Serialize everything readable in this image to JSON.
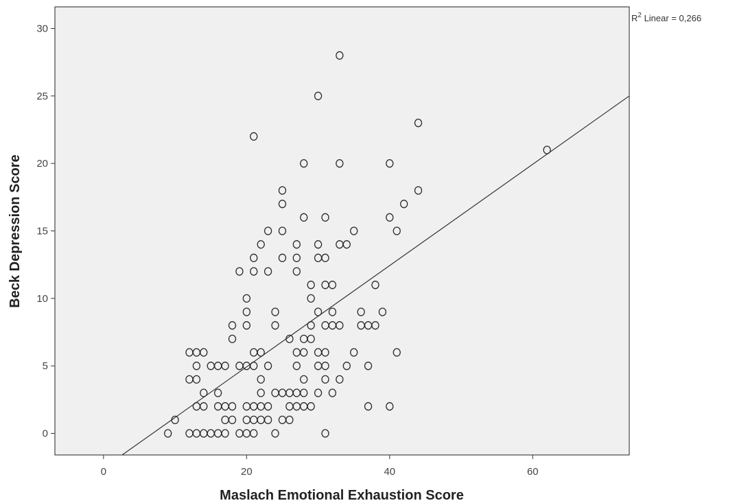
{
  "chart_data": {
    "type": "scatter",
    "xlabel": "Maslach Emotional Exhaustion Score",
    "ylabel": "Beck Depression Score",
    "xlim": [
      -6.8,
      73.5
    ],
    "ylim": [
      -1.6,
      31.6
    ],
    "x_ticks": [
      "0",
      "20",
      "40",
      "60"
    ],
    "y_ticks": [
      "0",
      "5",
      "10",
      "15",
      "20",
      "25",
      "30"
    ],
    "grid": false,
    "fit_line": {
      "type": "linear",
      "label_prefix": "R",
      "label_sup": "2",
      "label_rest": " Linear = 0,266",
      "points": [
        [
          2.6,
          -1.6
        ],
        [
          73.5,
          25.0
        ]
      ]
    },
    "colors": {
      "plot_background": "#f0f0f0",
      "marker": "#2a2a2a",
      "fit_line": "#333333"
    },
    "points": [
      [
        33,
        28
      ],
      [
        30,
        25
      ],
      [
        44,
        23
      ],
      [
        21,
        22
      ],
      [
        62,
        21
      ],
      [
        28,
        20
      ],
      [
        33,
        20
      ],
      [
        40,
        20
      ],
      [
        25,
        18
      ],
      [
        44,
        18
      ],
      [
        25,
        17
      ],
      [
        42,
        17
      ],
      [
        28,
        16
      ],
      [
        31,
        16
      ],
      [
        40,
        16
      ],
      [
        23,
        15
      ],
      [
        25,
        15
      ],
      [
        35,
        15
      ],
      [
        41,
        15
      ],
      [
        22,
        14
      ],
      [
        27,
        14
      ],
      [
        30,
        14
      ],
      [
        33,
        14
      ],
      [
        34,
        14
      ],
      [
        21,
        13
      ],
      [
        25,
        13
      ],
      [
        27,
        13
      ],
      [
        30,
        13
      ],
      [
        31,
        13
      ],
      [
        19,
        12
      ],
      [
        21,
        12
      ],
      [
        23,
        12
      ],
      [
        27,
        12
      ],
      [
        29,
        11
      ],
      [
        31,
        11
      ],
      [
        32,
        11
      ],
      [
        38,
        11
      ],
      [
        20,
        10
      ],
      [
        29,
        10
      ],
      [
        20,
        9
      ],
      [
        24,
        9
      ],
      [
        30,
        9
      ],
      [
        32,
        9
      ],
      [
        36,
        9
      ],
      [
        39,
        9
      ],
      [
        18,
        8
      ],
      [
        20,
        8
      ],
      [
        24,
        8
      ],
      [
        29,
        8
      ],
      [
        31,
        8
      ],
      [
        32,
        8
      ],
      [
        33,
        8
      ],
      [
        36,
        8
      ],
      [
        37,
        8
      ],
      [
        38,
        8
      ],
      [
        18,
        7
      ],
      [
        26,
        7
      ],
      [
        28,
        7
      ],
      [
        29,
        7
      ],
      [
        12,
        6
      ],
      [
        13,
        6
      ],
      [
        14,
        6
      ],
      [
        21,
        6
      ],
      [
        22,
        6
      ],
      [
        27,
        6
      ],
      [
        28,
        6
      ],
      [
        30,
        6
      ],
      [
        31,
        6
      ],
      [
        35,
        6
      ],
      [
        41,
        6
      ],
      [
        13,
        5
      ],
      [
        15,
        5
      ],
      [
        16,
        5
      ],
      [
        17,
        5
      ],
      [
        19,
        5
      ],
      [
        20,
        5
      ],
      [
        21,
        5
      ],
      [
        23,
        5
      ],
      [
        27,
        5
      ],
      [
        30,
        5
      ],
      [
        31,
        5
      ],
      [
        34,
        5
      ],
      [
        37,
        5
      ],
      [
        12,
        4
      ],
      [
        13,
        4
      ],
      [
        22,
        4
      ],
      [
        28,
        4
      ],
      [
        31,
        4
      ],
      [
        33,
        4
      ],
      [
        14,
        3
      ],
      [
        16,
        3
      ],
      [
        22,
        3
      ],
      [
        24,
        3
      ],
      [
        25,
        3
      ],
      [
        26,
        3
      ],
      [
        27,
        3
      ],
      [
        28,
        3
      ],
      [
        30,
        3
      ],
      [
        32,
        3
      ],
      [
        13,
        2
      ],
      [
        14,
        2
      ],
      [
        16,
        2
      ],
      [
        17,
        2
      ],
      [
        18,
        2
      ],
      [
        20,
        2
      ],
      [
        21,
        2
      ],
      [
        22,
        2
      ],
      [
        23,
        2
      ],
      [
        26,
        2
      ],
      [
        27,
        2
      ],
      [
        28,
        2
      ],
      [
        29,
        2
      ],
      [
        37,
        2
      ],
      [
        40,
        2
      ],
      [
        10,
        1
      ],
      [
        17,
        1
      ],
      [
        18,
        1
      ],
      [
        20,
        1
      ],
      [
        21,
        1
      ],
      [
        22,
        1
      ],
      [
        23,
        1
      ],
      [
        25,
        1
      ],
      [
        26,
        1
      ],
      [
        9,
        0
      ],
      [
        12,
        0
      ],
      [
        13,
        0
      ],
      [
        14,
        0
      ],
      [
        15,
        0
      ],
      [
        16,
        0
      ],
      [
        17,
        0
      ],
      [
        19,
        0
      ],
      [
        20,
        0
      ],
      [
        21,
        0
      ],
      [
        24,
        0
      ],
      [
        31,
        0
      ]
    ]
  }
}
